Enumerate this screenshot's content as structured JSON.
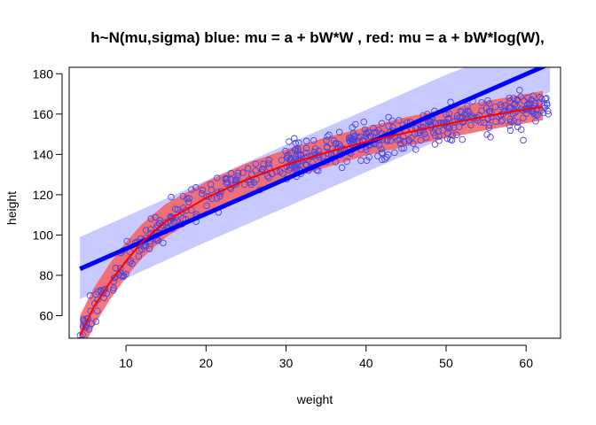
{
  "chart_data": {
    "type": "scatter",
    "title": "h~N(mu,sigma) blue: mu = a + bW*W , red: mu = a + bW*log(W),",
    "xlabel": "weight",
    "ylabel": "height",
    "xlim": [
      2.9,
      64.3
    ],
    "ylim": [
      48.8,
      183.2
    ],
    "xticks": [
      10,
      20,
      30,
      40,
      50,
      60
    ],
    "yticks": [
      60,
      80,
      100,
      120,
      140,
      160,
      180
    ],
    "xtick_labels": [
      "10",
      "20",
      "30",
      "40",
      "50",
      "60"
    ],
    "ytick_labels": [
      "60",
      "80",
      "100",
      "120",
      "140",
      "160",
      "180"
    ],
    "grid": false,
    "points_color": "#4a44e0",
    "blue_line": {
      "x": [
        4.25,
        62.99
      ],
      "y": [
        83.2,
        185.0
      ],
      "color": "#0000ff"
    },
    "blue_band": {
      "color": "#c8caff",
      "x": [
        4.25,
        10,
        20,
        30,
        40,
        50,
        60,
        62.99
      ],
      "lower": [
        68.2,
        78.5,
        96.5,
        113.8,
        131.2,
        148.6,
        166.0,
        171.0
      ],
      "upper": [
        99.0,
        109.2,
        127.0,
        144.8,
        162.0,
        179.5,
        195.0,
        200.0
      ]
    },
    "red_curve": {
      "x": [
        4.25,
        6,
        8,
        10,
        12,
        15,
        20,
        25,
        30,
        35,
        40,
        45,
        50,
        55,
        60,
        62.1
      ],
      "y": [
        50.0,
        64.5,
        76.5,
        87.0,
        96.5,
        106.8,
        118.4,
        127.4,
        134.8,
        140.9,
        146.2,
        150.8,
        155.0,
        158.9,
        162.4,
        163.5
      ],
      "color": "#ff0000"
    },
    "red_band": {
      "color": "#f55f5f",
      "x": [
        4.25,
        6,
        8,
        10,
        12,
        15,
        20,
        25,
        30,
        35,
        40,
        45,
        50,
        55,
        60,
        62.1
      ],
      "lower": [
        40.0,
        55.0,
        68.0,
        79.0,
        88.5,
        99.0,
        111.0,
        120.5,
        127.5,
        133.5,
        139.5,
        144.0,
        148.0,
        152.0,
        155.5,
        157.0
      ],
      "upper": [
        60.0,
        74.0,
        86.0,
        96.5,
        105.5,
        115.5,
        126.5,
        135.5,
        142.5,
        148.5,
        153.5,
        158.5,
        162.5,
        166.5,
        170.0,
        171.5
      ]
    },
    "points_seed": 7,
    "points_count": 540
  }
}
